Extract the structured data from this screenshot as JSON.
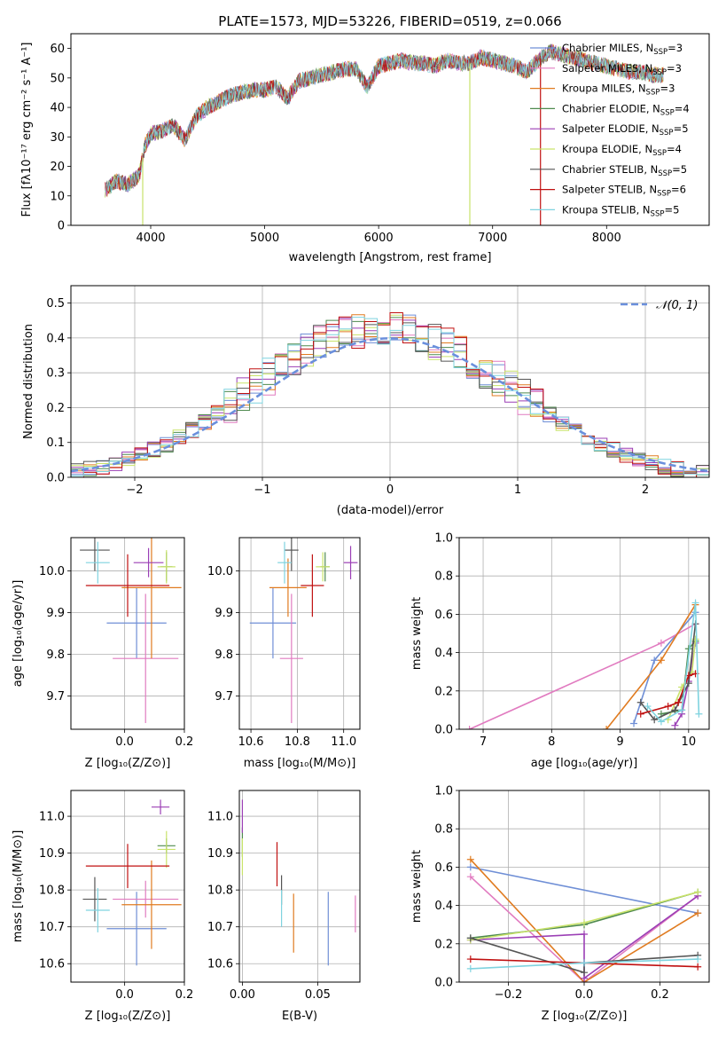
{
  "figure_title": "PLATE=1573, MJD=53226, FIBERID=0519, z=0.066",
  "colors": {
    "chabrier_miles": "#6f8fd6",
    "salpeter_miles": "#e17bc0",
    "kroupa_miles": "#e07b20",
    "chabrier_elodie": "#4f8a4f",
    "salpeter_elodie": "#9b3fb5",
    "kroupa_elodie": "#c9e36a",
    "chabrier_stelib": "#555555",
    "salpeter_stelib": "#c01010",
    "kroupa_stelib": "#7fd3df",
    "normal": "#6a8fdc",
    "grid": "#b0b0b0"
  },
  "legend": [
    {
      "key": "chabrier_miles",
      "base": "Chabrier MILES, N",
      "sub": "SSP",
      "tail": "=3"
    },
    {
      "key": "salpeter_miles",
      "base": "Salpeter MILES, N",
      "sub": "SSP",
      "tail": "=3"
    },
    {
      "key": "kroupa_miles",
      "base": "Kroupa MILES, N",
      "sub": "SSP",
      "tail": "=3"
    },
    {
      "key": "chabrier_elodie",
      "base": "Chabrier ELODIE, N",
      "sub": "SSP",
      "tail": "=4"
    },
    {
      "key": "salpeter_elodie",
      "base": "Salpeter ELODIE, N",
      "sub": "SSP",
      "tail": "=5"
    },
    {
      "key": "kroupa_elodie",
      "base": "Kroupa ELODIE, N",
      "sub": "SSP",
      "tail": "=4"
    },
    {
      "key": "chabrier_stelib",
      "base": "Chabrier STELIB, N",
      "sub": "SSP",
      "tail": "=5"
    },
    {
      "key": "salpeter_stelib",
      "base": "Salpeter STELIB, N",
      "sub": "SSP",
      "tail": "=6"
    },
    {
      "key": "kroupa_stelib",
      "base": "Kroupa STELIB, N",
      "sub": "SSP",
      "tail": "=5"
    }
  ],
  "chart_data": [
    {
      "id": "spectrum",
      "type": "line",
      "xlabel": "wavelength [Angstrom, rest frame]",
      "ylabel": "Flux [fλ10⁻¹⁷ erg cm⁻² s⁻¹ A⁻¹]",
      "xlim": [
        3300,
        8900
      ],
      "ylim": [
        0,
        65
      ],
      "xticks": [
        4000,
        5000,
        6000,
        7000,
        8000
      ],
      "yticks": [
        0,
        10,
        20,
        30,
        40,
        50,
        60
      ],
      "grid": false,
      "legend_position": "upper right",
      "spectrum_points": [
        [
          3600,
          12
        ],
        [
          3700,
          15
        ],
        [
          3800,
          14
        ],
        [
          3900,
          17
        ],
        [
          3950,
          27
        ],
        [
          4000,
          31
        ],
        [
          4100,
          32
        ],
        [
          4200,
          34
        ],
        [
          4300,
          29
        ],
        [
          4400,
          37
        ],
        [
          4500,
          40
        ],
        [
          4600,
          42
        ],
        [
          4700,
          44
        ],
        [
          4800,
          45
        ],
        [
          4900,
          46
        ],
        [
          5000,
          46
        ],
        [
          5100,
          47
        ],
        [
          5200,
          43
        ],
        [
          5300,
          49
        ],
        [
          5400,
          50
        ],
        [
          5500,
          51
        ],
        [
          5600,
          52
        ],
        [
          5700,
          53
        ],
        [
          5800,
          53
        ],
        [
          5900,
          47
        ],
        [
          6000,
          54
        ],
        [
          6100,
          55
        ],
        [
          6200,
          56
        ],
        [
          6300,
          55
        ],
        [
          6400,
          55
        ],
        [
          6500,
          54
        ],
        [
          6600,
          56
        ],
        [
          6700,
          55
        ],
        [
          6800,
          55
        ],
        [
          6900,
          57
        ],
        [
          7000,
          56
        ],
        [
          7100,
          55
        ],
        [
          7200,
          54
        ],
        [
          7300,
          52
        ],
        [
          7400,
          56
        ],
        [
          7500,
          59
        ],
        [
          7600,
          58
        ],
        [
          7700,
          57
        ],
        [
          7800,
          56
        ],
        [
          7900,
          55
        ],
        [
          8000,
          54
        ],
        [
          8100,
          53
        ],
        [
          8200,
          52
        ],
        [
          8300,
          52
        ],
        [
          8400,
          51
        ],
        [
          8500,
          51
        ]
      ],
      "dropouts": [
        {
          "series": "kroupa_elodie",
          "x": 3930
        },
        {
          "series": "kroupa_elodie",
          "x": 6800
        },
        {
          "series": "salpeter_stelib",
          "x": 7420
        }
      ]
    },
    {
      "id": "residuals",
      "type": "histogram",
      "xlabel": "(data-model)/error",
      "ylabel": "Normed distribution",
      "xlim": [
        -2.5,
        2.5
      ],
      "ylim": [
        0,
        0.55
      ],
      "xticks": [
        -2,
        -1,
        0,
        1,
        2
      ],
      "xtick_labels": [
        "−2",
        "−1",
        "0",
        "1",
        "2"
      ],
      "yticks": [
        0.0,
        0.1,
        0.2,
        0.3,
        0.4,
        0.5
      ],
      "ytick_labels": [
        "0.0",
        "0.1",
        "0.2",
        "0.3",
        "0.4",
        "0.5"
      ],
      "grid": true,
      "legend_position": "upper right",
      "normal_label": "𝒩(0, 1)",
      "bin_width": 0.1,
      "bin_start": -2.5,
      "base": [
        0.02,
        0.025,
        0.03,
        0.04,
        0.05,
        0.065,
        0.08,
        0.095,
        0.115,
        0.135,
        0.16,
        0.185,
        0.21,
        0.24,
        0.265,
        0.29,
        0.32,
        0.345,
        0.365,
        0.385,
        0.4,
        0.41,
        0.42,
        0.43,
        0.43,
        0.425,
        0.415,
        0.405,
        0.39,
        0.375,
        0.355,
        0.33,
        0.305,
        0.28,
        0.255,
        0.23,
        0.205,
        0.18,
        0.155,
        0.135,
        0.115,
        0.095,
        0.08,
        0.065,
        0.05,
        0.04,
        0.03,
        0.025,
        0.02,
        0.02
      ]
    },
    {
      "id": "age_vs_z",
      "type": "errorbar",
      "xlabel": "Z [log₁₀(Z/Z⊙)]",
      "ylabel": "age  [log₁₀(age/yr)]",
      "xlim": [
        -0.18,
        0.2
      ],
      "ylim": [
        9.62,
        10.08
      ],
      "xticks": [
        0.0,
        0.2
      ],
      "xtick_labels": [
        "0.0",
        "0.2"
      ],
      "yticks": [
        9.7,
        9.8,
        9.9,
        10.0
      ],
      "ytick_labels": [
        "9.7",
        "9.8",
        "9.9",
        "10.0"
      ],
      "grid": true,
      "points": [
        {
          "series": "chabrier_miles",
          "x": 0.04,
          "xerr": 0.1,
          "y": 9.875,
          "yerr": 0.085
        },
        {
          "series": "salpeter_miles",
          "x": 0.07,
          "xerr": 0.11,
          "y": 9.79,
          "yerr": 0.155
        },
        {
          "series": "kroupa_miles",
          "x": 0.09,
          "xerr": 0.1,
          "y": 9.96,
          "yerr": 0.17
        },
        {
          "series": "chabrier_elodie",
          "x": 0.14,
          "xerr": 0.02,
          "y": 10.01,
          "yerr": 0.035
        },
        {
          "series": "salpeter_elodie",
          "x": 0.08,
          "xerr": 0.05,
          "y": 10.02,
          "yerr": 0.035
        },
        {
          "series": "kroupa_elodie",
          "x": 0.14,
          "xerr": 0.03,
          "y": 10.01,
          "yerr": 0.04
        },
        {
          "series": "chabrier_stelib",
          "x": -0.1,
          "xerr": 0.05,
          "y": 10.05,
          "yerr": 0.05
        },
        {
          "series": "salpeter_stelib",
          "x": 0.01,
          "xerr": 0.14,
          "y": 9.965,
          "yerr": 0.075
        },
        {
          "series": "kroupa_stelib",
          "x": -0.09,
          "xerr": 0.04,
          "y": 10.02,
          "yerr": 0.05
        }
      ]
    },
    {
      "id": "age_vs_mass",
      "type": "errorbar",
      "xlabel": "mass [log₁₀(M/M⊙)]",
      "ylabel": "",
      "xlim": [
        10.55,
        11.07
      ],
      "ylim": [
        9.62,
        10.08
      ],
      "xticks": [
        10.6,
        10.8,
        11.0
      ],
      "xtick_labels": [
        "10.6",
        "10.8",
        "11.0"
      ],
      "yticks": [
        9.7,
        9.8,
        9.9,
        10.0
      ],
      "ytick_labels": [
        "9.7",
        "9.8",
        "9.9",
        "10.0"
      ],
      "grid": true,
      "points": [
        {
          "series": "chabrier_miles",
          "x": 10.695,
          "xerr": 0.1,
          "y": 9.875,
          "yerr": 0.085
        },
        {
          "series": "salpeter_miles",
          "x": 10.775,
          "xerr": 0.05,
          "y": 9.79,
          "yerr": 0.155
        },
        {
          "series": "kroupa_miles",
          "x": 10.76,
          "xerr": 0.08,
          "y": 9.96,
          "yerr": 0.07
        },
        {
          "series": "chabrier_elodie",
          "x": 10.92,
          "xerr": 0.02,
          "y": 10.01,
          "yerr": 0.035
        },
        {
          "series": "salpeter_elodie",
          "x": 11.03,
          "xerr": 0.03,
          "y": 10.02,
          "yerr": 0.04
        },
        {
          "series": "kroupa_elodie",
          "x": 10.91,
          "xerr": 0.03,
          "y": 10.01,
          "yerr": 0.035
        },
        {
          "series": "chabrier_stelib",
          "x": 10.775,
          "xerr": 0.03,
          "y": 10.05,
          "yerr": 0.05
        },
        {
          "series": "salpeter_stelib",
          "x": 10.865,
          "xerr": 0.05,
          "y": 9.965,
          "yerr": 0.075
        },
        {
          "series": "kroupa_stelib",
          "x": 10.745,
          "xerr": 0.03,
          "y": 10.02,
          "yerr": 0.05
        }
      ]
    },
    {
      "id": "weight_vs_age",
      "type": "line",
      "xlabel": "age  [log₁₀(age/yr)]",
      "ylabel": "mass weight",
      "xlim": [
        6.65,
        10.3
      ],
      "ylim": [
        0,
        1.0
      ],
      "xticks": [
        7,
        8,
        9,
        10
      ],
      "xtick_labels": [
        "7",
        "8",
        "9",
        "10"
      ],
      "yticks": [
        0.0,
        0.2,
        0.4,
        0.6,
        0.8,
        1.0
      ],
      "ytick_labels": [
        "0.0",
        "0.2",
        "0.4",
        "0.6",
        "0.8",
        "1.0"
      ],
      "grid": true,
      "series": [
        {
          "key": "chabrier_miles",
          "x": [
            9.2,
            9.5,
            10.1
          ],
          "y": [
            0.03,
            0.36,
            0.61
          ]
        },
        {
          "key": "salpeter_miles",
          "x": [
            6.8,
            9.6,
            10.1
          ],
          "y": [
            0.0,
            0.45,
            0.55
          ]
        },
        {
          "key": "kroupa_miles",
          "x": [
            8.8,
            9.6,
            10.1
          ],
          "y": [
            0.0,
            0.36,
            0.65
          ]
        },
        {
          "key": "chabrier_elodie",
          "x": [
            9.6,
            9.9,
            10.0,
            10.1
          ],
          "y": [
            0.08,
            0.1,
            0.42,
            0.46
          ]
        },
        {
          "key": "salpeter_elodie",
          "x": [
            9.8,
            9.9,
            10.0,
            10.1
          ],
          "y": [
            0.02,
            0.08,
            0.25,
            0.45
          ]
        },
        {
          "key": "kroupa_elodie",
          "x": [
            9.7,
            9.9,
            10.05,
            10.1
          ],
          "y": [
            0.05,
            0.22,
            0.3,
            0.47
          ]
        },
        {
          "key": "chabrier_stelib",
          "x": [
            9.3,
            9.5,
            9.8,
            10.0,
            10.1
          ],
          "y": [
            0.14,
            0.05,
            0.1,
            0.24,
            0.55
          ]
        },
        {
          "key": "salpeter_stelib",
          "x": [
            9.3,
            9.7,
            9.85,
            10.0,
            10.1
          ],
          "y": [
            0.08,
            0.12,
            0.14,
            0.28,
            0.29
          ]
        },
        {
          "key": "kroupa_stelib",
          "x": [
            9.4,
            9.6,
            9.9,
            10.1,
            10.15
          ],
          "y": [
            0.12,
            0.04,
            0.1,
            0.66,
            0.08
          ]
        }
      ]
    },
    {
      "id": "mass_vs_z",
      "type": "errorbar",
      "xlabel": "Z [log₁₀(Z/Z⊙)]",
      "ylabel": "mass [log₁₀(M/M⊙)]",
      "xlim": [
        -0.18,
        0.2
      ],
      "ylim": [
        10.55,
        11.07
      ],
      "xticks": [
        0.0,
        0.2
      ],
      "xtick_labels": [
        "0.0",
        "0.2"
      ],
      "yticks": [
        10.6,
        10.7,
        10.8,
        10.9,
        11.0
      ],
      "ytick_labels": [
        "10.6",
        "10.7",
        "10.8",
        "10.9",
        "11.0"
      ],
      "grid": true,
      "points": [
        {
          "series": "chabrier_miles",
          "x": 0.04,
          "xerr": 0.1,
          "y": 10.695,
          "yerr": 0.1
        },
        {
          "series": "salpeter_miles",
          "x": 0.07,
          "xerr": 0.11,
          "y": 10.775,
          "yerr": 0.05
        },
        {
          "series": "kroupa_miles",
          "x": 0.09,
          "xerr": 0.1,
          "y": 10.76,
          "yerr": 0.12
        },
        {
          "series": "chabrier_elodie",
          "x": 0.14,
          "xerr": 0.03,
          "y": 10.92,
          "yerr": 0.02
        },
        {
          "series": "salpeter_elodie",
          "x": 0.12,
          "xerr": 0.03,
          "y": 11.025,
          "yerr": 0.02
        },
        {
          "series": "kroupa_elodie",
          "x": 0.14,
          "xerr": 0.03,
          "y": 10.91,
          "yerr": 0.05
        },
        {
          "series": "chabrier_stelib",
          "x": -0.1,
          "xerr": 0.04,
          "y": 10.775,
          "yerr": 0.06
        },
        {
          "series": "salpeter_stelib",
          "x": 0.01,
          "xerr": 0.14,
          "y": 10.865,
          "yerr": 0.06
        },
        {
          "series": "kroupa_stelib",
          "x": -0.09,
          "xerr": 0.04,
          "y": 10.745,
          "yerr": 0.06
        }
      ]
    },
    {
      "id": "mass_vs_ebv",
      "type": "errorbar",
      "xlabel": "E(B-V)",
      "ylabel": "",
      "xlim": [
        -0.002,
        0.078
      ],
      "ylim": [
        10.55,
        11.07
      ],
      "xticks": [
        0.0,
        0.05
      ],
      "xtick_labels": [
        "0.00",
        "0.05"
      ],
      "yticks": [
        10.6,
        10.7,
        10.8,
        10.9,
        11.0
      ],
      "ytick_labels": [
        "10.6",
        "10.7",
        "10.8",
        "10.9",
        "11.0"
      ],
      "grid": true,
      "points": [
        {
          "series": "chabrier_miles",
          "x": 0.057,
          "xerr": 0,
          "y": 10.695,
          "yerr": 0.1
        },
        {
          "series": "salpeter_miles",
          "x": 0.075,
          "xerr": 0,
          "y": 10.735,
          "yerr": 0.05
        },
        {
          "series": "kroupa_miles",
          "x": 0.034,
          "xerr": 0,
          "y": 10.71,
          "yerr": 0.08
        },
        {
          "series": "chabrier_elodie",
          "x": 0.0,
          "xerr": 0,
          "y": 10.93,
          "yerr": 0.04
        },
        {
          "series": "salpeter_elodie",
          "x": 0.0,
          "xerr": 0,
          "y": 11.0,
          "yerr": 0.045
        },
        {
          "series": "kroupa_elodie",
          "x": 0.0,
          "xerr": 0,
          "y": 10.89,
          "yerr": 0.05
        },
        {
          "series": "chabrier_stelib",
          "x": 0.026,
          "xerr": 0,
          "y": 10.8,
          "yerr": 0.04
        },
        {
          "series": "salpeter_stelib",
          "x": 0.023,
          "xerr": 0,
          "y": 10.87,
          "yerr": 0.06
        },
        {
          "series": "kroupa_stelib",
          "x": 0.026,
          "xerr": 0,
          "y": 10.75,
          "yerr": 0.05
        }
      ]
    },
    {
      "id": "weight_vs_z",
      "type": "line",
      "xlabel": "Z [log₁₀(Z/Z⊙)]",
      "ylabel": "mass weight",
      "xlim": [
        -0.33,
        0.33
      ],
      "ylim": [
        0,
        1.0
      ],
      "xticks": [
        -0.2,
        0.0,
        0.2
      ],
      "xtick_labels": [
        "−0.2",
        "0.0",
        "0.2"
      ],
      "yticks": [
        0.0,
        0.2,
        0.4,
        0.6,
        0.8,
        1.0
      ],
      "ytick_labels": [
        "0.0",
        "0.2",
        "0.4",
        "0.6",
        "0.8",
        "1.0"
      ],
      "grid": true,
      "series": [
        {
          "key": "chabrier_miles",
          "x": [
            -0.3,
            0.3
          ],
          "y": [
            0.6,
            0.36
          ]
        },
        {
          "key": "salpeter_miles",
          "x": [
            -0.3,
            0.0,
            0.3
          ],
          "y": [
            0.55,
            0.0,
            0.45
          ]
        },
        {
          "key": "kroupa_miles",
          "x": [
            -0.3,
            0.0,
            0.3
          ],
          "y": [
            0.64,
            0.0,
            0.36
          ]
        },
        {
          "key": "chabrier_elodie",
          "x": [
            -0.3,
            0.0,
            0.3
          ],
          "y": [
            0.23,
            0.3,
            0.47
          ]
        },
        {
          "key": "salpeter_elodie",
          "x": [
            -0.3,
            0.0,
            0.0,
            0.3
          ],
          "y": [
            0.22,
            0.25,
            0.02,
            0.45
          ]
        },
        {
          "key": "kroupa_elodie",
          "x": [
            -0.3,
            0.0,
            0.3
          ],
          "y": [
            0.22,
            0.31,
            0.47
          ]
        },
        {
          "key": "chabrier_stelib",
          "x": [
            -0.3,
            0.0,
            0.0,
            0.3
          ],
          "y": [
            0.23,
            0.05,
            0.1,
            0.14
          ]
        },
        {
          "key": "salpeter_stelib",
          "x": [
            -0.3,
            0.3
          ],
          "y": [
            0.12,
            0.08
          ]
        },
        {
          "key": "kroupa_stelib",
          "x": [
            -0.3,
            0.0,
            0.3
          ],
          "y": [
            0.07,
            0.1,
            0.12
          ]
        }
      ]
    }
  ]
}
